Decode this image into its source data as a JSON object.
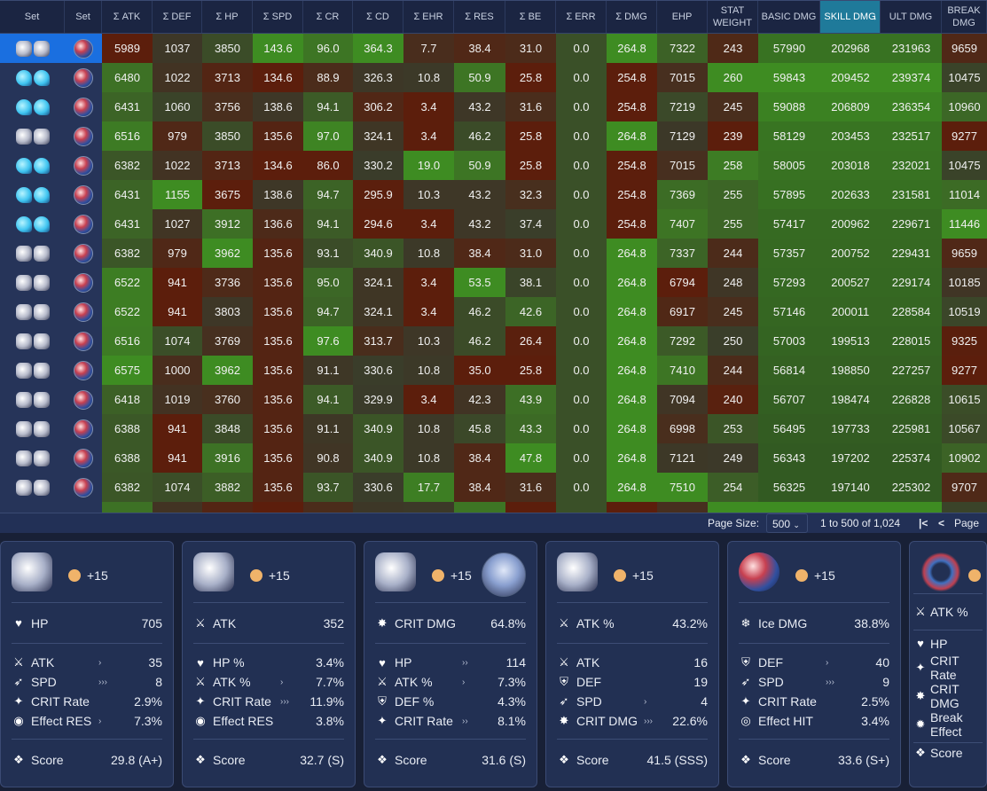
{
  "table": {
    "headers": [
      "Set",
      "Set",
      "Σ ATK",
      "Σ DEF",
      "Σ HP",
      "Σ SPD",
      "Σ CR",
      "Σ CD",
      "Σ EHR",
      "Σ RES",
      "Σ BE",
      "Σ ERR",
      "Σ DMG",
      "EHP",
      "STAT WEIGHT",
      "BASIC DMG",
      "SKILL DMG",
      "ULT DMG",
      "BREAK DMG"
    ],
    "sorted_column": "SKILL DMG",
    "sort_icon": "arrow-down-icon",
    "rows": [
      {
        "sets": [
          "white",
          "white",
          "planar"
        ],
        "values": [
          "5989",
          "1037",
          "3850",
          "143.6",
          "96.0",
          "364.3",
          "7.7",
          "38.4",
          "31.0",
          "0.0",
          "264.8",
          "7322",
          "243",
          "57990",
          "202968",
          "231963",
          "9659"
        ]
      },
      {
        "sets": [
          "blue",
          "blue",
          "planar"
        ],
        "values": [
          "6480",
          "1022",
          "3713",
          "134.6",
          "88.9",
          "326.3",
          "10.8",
          "50.9",
          "25.8",
          "0.0",
          "254.8",
          "7015",
          "260",
          "59843",
          "209452",
          "239374",
          "10475"
        ]
      },
      {
        "sets": [
          "blue",
          "blue",
          "planar"
        ],
        "values": [
          "6431",
          "1060",
          "3756",
          "138.6",
          "94.1",
          "306.2",
          "3.4",
          "43.2",
          "31.6",
          "0.0",
          "254.8",
          "7219",
          "245",
          "59088",
          "206809",
          "236354",
          "10960"
        ]
      },
      {
        "sets": [
          "white",
          "white",
          "planar"
        ],
        "values": [
          "6516",
          "979",
          "3850",
          "135.6",
          "97.0",
          "324.1",
          "3.4",
          "46.2",
          "25.8",
          "0.0",
          "264.8",
          "7129",
          "239",
          "58129",
          "203453",
          "232517",
          "9277"
        ]
      },
      {
        "sets": [
          "blue",
          "blue",
          "planar"
        ],
        "values": [
          "6382",
          "1022",
          "3713",
          "134.6",
          "86.0",
          "330.2",
          "19.0",
          "50.9",
          "25.8",
          "0.0",
          "254.8",
          "7015",
          "258",
          "58005",
          "203018",
          "232021",
          "10475"
        ]
      },
      {
        "sets": [
          "blue",
          "blue",
          "planar"
        ],
        "values": [
          "6431",
          "1155",
          "3675",
          "138.6",
          "94.7",
          "295.9",
          "10.3",
          "43.2",
          "32.3",
          "0.0",
          "254.8",
          "7369",
          "255",
          "57895",
          "202633",
          "231581",
          "11014"
        ]
      },
      {
        "sets": [
          "blue",
          "blue",
          "planar"
        ],
        "values": [
          "6431",
          "1027",
          "3912",
          "136.6",
          "94.1",
          "294.6",
          "3.4",
          "43.2",
          "37.4",
          "0.0",
          "254.8",
          "7407",
          "255",
          "57417",
          "200962",
          "229671",
          "11446"
        ]
      },
      {
        "sets": [
          "white",
          "white",
          "planar"
        ],
        "values": [
          "6382",
          "979",
          "3962",
          "135.6",
          "93.1",
          "340.9",
          "10.8",
          "38.4",
          "31.0",
          "0.0",
          "264.8",
          "7337",
          "244",
          "57357",
          "200752",
          "229431",
          "9659"
        ]
      },
      {
        "sets": [
          "white",
          "white",
          "planar"
        ],
        "values": [
          "6522",
          "941",
          "3736",
          "135.6",
          "95.0",
          "324.1",
          "3.4",
          "53.5",
          "38.1",
          "0.0",
          "264.8",
          "6794",
          "248",
          "57293",
          "200527",
          "229174",
          "10185"
        ]
      },
      {
        "sets": [
          "white",
          "white",
          "planar"
        ],
        "values": [
          "6522",
          "941",
          "3803",
          "135.6",
          "94.7",
          "324.1",
          "3.4",
          "46.2",
          "42.6",
          "0.0",
          "264.8",
          "6917",
          "245",
          "57146",
          "200011",
          "228584",
          "10519"
        ]
      },
      {
        "sets": [
          "white",
          "white",
          "planar"
        ],
        "values": [
          "6516",
          "1074",
          "3769",
          "135.6",
          "97.6",
          "313.7",
          "10.3",
          "46.2",
          "26.4",
          "0.0",
          "264.8",
          "7292",
          "250",
          "57003",
          "199513",
          "228015",
          "9325"
        ]
      },
      {
        "sets": [
          "white",
          "white",
          "planar"
        ],
        "values": [
          "6575",
          "1000",
          "3962",
          "135.6",
          "91.1",
          "330.6",
          "10.8",
          "35.0",
          "25.8",
          "0.0",
          "264.8",
          "7410",
          "244",
          "56814",
          "198850",
          "227257",
          "9277"
        ]
      },
      {
        "sets": [
          "white",
          "white",
          "planar"
        ],
        "values": [
          "6418",
          "1019",
          "3760",
          "135.6",
          "94.1",
          "329.9",
          "3.4",
          "42.3",
          "43.9",
          "0.0",
          "264.8",
          "7094",
          "240",
          "56707",
          "198474",
          "226828",
          "10615"
        ]
      },
      {
        "sets": [
          "white",
          "white",
          "planar"
        ],
        "values": [
          "6388",
          "941",
          "3848",
          "135.6",
          "91.1",
          "340.9",
          "10.8",
          "45.8",
          "43.3",
          "0.0",
          "264.8",
          "6998",
          "253",
          "56495",
          "197733",
          "225981",
          "10567"
        ]
      },
      {
        "sets": [
          "white",
          "white",
          "planar"
        ],
        "values": [
          "6388",
          "941",
          "3916",
          "135.6",
          "90.8",
          "340.9",
          "10.8",
          "38.4",
          "47.8",
          "0.0",
          "264.8",
          "7121",
          "249",
          "56343",
          "197202",
          "225374",
          "10902"
        ]
      },
      {
        "sets": [
          "white",
          "white",
          "planar"
        ],
        "values": [
          "6382",
          "1074",
          "3882",
          "135.6",
          "93.7",
          "330.6",
          "17.7",
          "38.4",
          "31.6",
          "0.0",
          "264.8",
          "7510",
          "254",
          "56325",
          "197140",
          "225302",
          "9707"
        ]
      }
    ]
  },
  "pager": {
    "page_size_label": "Page Size:",
    "page_size": "500",
    "range": "1 to 500 of 1,024",
    "first": "|<",
    "prev": "<",
    "page_label": "Page"
  },
  "cards": [
    {
      "piece": "head",
      "level": "+15",
      "main": {
        "icon": "heart-icon",
        "glyph": "♥",
        "name": "HP",
        "value": "705"
      },
      "subs": [
        {
          "icon": "sword-icon",
          "glyph": "⚔",
          "name": "ATK",
          "rolls": "›",
          "value": "35"
        },
        {
          "icon": "boot-icon",
          "glyph": "➶",
          "name": "SPD",
          "rolls": "›››",
          "value": "8"
        },
        {
          "icon": "crit-rate-icon",
          "glyph": "✦",
          "name": "CRIT Rate",
          "rolls": "",
          "value": "2.9%"
        },
        {
          "icon": "effect-res-icon",
          "glyph": "◉",
          "name": "Effect RES",
          "rolls": "›",
          "value": "7.3%"
        }
      ],
      "score_label": "Score",
      "score": "29.8 (A+)"
    },
    {
      "piece": "hands",
      "level": "+15",
      "main": {
        "icon": "sword-icon",
        "glyph": "⚔",
        "name": "ATK",
        "value": "352"
      },
      "subs": [
        {
          "icon": "heart-icon",
          "glyph": "♥",
          "name": "HP %",
          "rolls": "",
          "value": "3.4%"
        },
        {
          "icon": "sword-icon",
          "glyph": "⚔",
          "name": "ATK %",
          "rolls": "›",
          "value": "7.7%"
        },
        {
          "icon": "crit-rate-icon",
          "glyph": "✦",
          "name": "CRIT Rate",
          "rolls": "›››",
          "value": "11.9%"
        },
        {
          "icon": "effect-res-icon",
          "glyph": "◉",
          "name": "Effect RES",
          "rolls": "",
          "value": "3.8%"
        }
      ],
      "score_label": "Score",
      "score": "32.7 (S)"
    },
    {
      "piece": "body",
      "level": "+15",
      "avatar": true,
      "main": {
        "icon": "crit-dmg-icon",
        "glyph": "✸",
        "name": "CRIT DMG",
        "value": "64.8%"
      },
      "subs": [
        {
          "icon": "heart-icon",
          "glyph": "♥",
          "name": "HP",
          "rolls": "››",
          "value": "114"
        },
        {
          "icon": "sword-icon",
          "glyph": "⚔",
          "name": "ATK %",
          "rolls": "›",
          "value": "7.3%"
        },
        {
          "icon": "shield-icon",
          "glyph": "⛨",
          "name": "DEF %",
          "rolls": "",
          "value": "4.3%"
        },
        {
          "icon": "crit-rate-icon",
          "glyph": "✦",
          "name": "CRIT Rate",
          "rolls": "››",
          "value": "8.1%"
        }
      ],
      "score_label": "Score",
      "score": "31.6 (S)"
    },
    {
      "piece": "feet",
      "level": "+15",
      "main": {
        "icon": "sword-icon",
        "glyph": "⚔",
        "name": "ATK %",
        "value": "43.2%"
      },
      "subs": [
        {
          "icon": "sword-icon",
          "glyph": "⚔",
          "name": "ATK",
          "rolls": "",
          "value": "16"
        },
        {
          "icon": "shield-icon",
          "glyph": "⛨",
          "name": "DEF",
          "rolls": "",
          "value": "19"
        },
        {
          "icon": "boot-icon",
          "glyph": "➶",
          "name": "SPD",
          "rolls": "›",
          "value": "4"
        },
        {
          "icon": "crit-dmg-icon",
          "glyph": "✸",
          "name": "CRIT DMG",
          "rolls": "›››",
          "value": "22.6%"
        }
      ],
      "score_label": "Score",
      "score": "41.5 (SSS)"
    },
    {
      "piece": "planar",
      "level": "+15",
      "main": {
        "icon": "ice-icon",
        "glyph": "❄",
        "name": "Ice DMG",
        "value": "38.8%"
      },
      "subs": [
        {
          "icon": "shield-icon",
          "glyph": "⛨",
          "name": "DEF",
          "rolls": "›",
          "value": "40"
        },
        {
          "icon": "boot-icon",
          "glyph": "➶",
          "name": "SPD",
          "rolls": "›››",
          "value": "9"
        },
        {
          "icon": "crit-rate-icon",
          "glyph": "✦",
          "name": "CRIT Rate",
          "rolls": "",
          "value": "2.5%"
        },
        {
          "icon": "effect-hit-icon",
          "glyph": "◎",
          "name": "Effect HIT",
          "rolls": "",
          "value": "3.4%"
        }
      ],
      "score_label": "Score",
      "score": "33.6 (S+)"
    },
    {
      "piece": "rope",
      "level": "",
      "main": {
        "icon": "sword-icon",
        "glyph": "⚔",
        "name": "ATK %",
        "value": ""
      },
      "subs": [
        {
          "icon": "heart-icon",
          "glyph": "♥",
          "name": "HP",
          "rolls": "",
          "value": ""
        },
        {
          "icon": "crit-rate-icon",
          "glyph": "✦",
          "name": "CRIT Rate",
          "rolls": "",
          "value": ""
        },
        {
          "icon": "crit-dmg-icon",
          "glyph": "✸",
          "name": "CRIT DMG",
          "rolls": "",
          "value": ""
        },
        {
          "icon": "break-effect-icon",
          "glyph": "✹",
          "name": "Break Effect",
          "rolls": "",
          "value": ""
        }
      ],
      "score_label": "Score",
      "score": ""
    }
  ]
}
